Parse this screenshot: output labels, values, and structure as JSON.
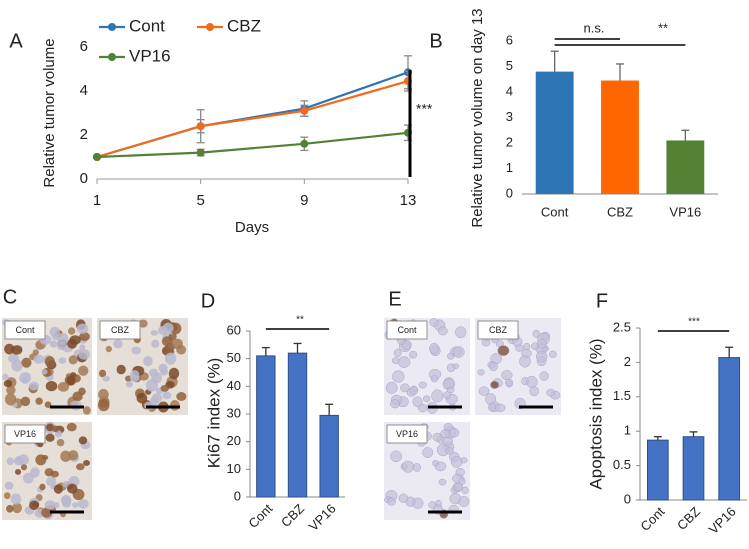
{
  "chart_data": [
    {
      "type": "line",
      "panel": "A",
      "y_label": "Relative tumor volume",
      "x_label": "Days",
      "x": [
        1,
        5,
        9,
        13
      ],
      "xlim": [
        1,
        13
      ],
      "xticks": [
        1,
        5,
        9,
        13
      ],
      "ylim": [
        0,
        6
      ],
      "yticks": [
        0,
        2,
        4,
        6
      ],
      "series": [
        {
          "name": "Cont",
          "color": "#2e75b6",
          "values": [
            1,
            2.4,
            3.2,
            4.85
          ],
          "errors": [
            0,
            0.75,
            0.35,
            0.75
          ]
        },
        {
          "name": "CBZ",
          "color": "#f26a1b",
          "values": [
            1,
            2.4,
            3.1,
            4.45
          ],
          "errors": [
            0,
            0.3,
            0.25,
            0.45
          ]
        },
        {
          "name": "VP16",
          "color": "#548235",
          "values": [
            1,
            1.2,
            1.6,
            2.1
          ],
          "errors": [
            0,
            0.15,
            0.3,
            0.35
          ]
        }
      ],
      "annotations": [
        "***"
      ]
    },
    {
      "type": "bar",
      "panel": "B",
      "y_label": "Relative tumor volume on day 13",
      "categories": [
        "Cont",
        "CBZ",
        "VP16"
      ],
      "values": [
        4.8,
        4.45,
        2.1
      ],
      "errors": [
        0.8,
        0.65,
        0.4
      ],
      "colors": [
        "#2e75b6",
        "#ff6600",
        "#548235"
      ],
      "ylim": [
        0,
        6
      ],
      "yticks": [
        0,
        1,
        2,
        3,
        4,
        5,
        6
      ],
      "y_axis_line": false,
      "annotations": [
        "n.s.",
        "**"
      ]
    },
    {
      "type": "bar",
      "panel": "D",
      "y_label": "Ki67 index (%)",
      "categories": [
        "Cont",
        "CBZ",
        "VP16"
      ],
      "values": [
        51,
        52,
        29.5
      ],
      "errors": [
        3,
        3.5,
        4
      ],
      "colors": [
        "#4472c4",
        "#4472c4",
        "#4472c4"
      ],
      "ylim": [
        0,
        60
      ],
      "yticks": [
        0,
        10,
        20,
        30,
        40,
        50,
        60
      ],
      "y_axis_line": true,
      "annotations": [
        "**"
      ]
    },
    {
      "type": "bar",
      "panel": "F",
      "y_label": "Apoptosis index (%)",
      "categories": [
        "Cont",
        "CBZ",
        "VP16"
      ],
      "values": [
        0.87,
        0.92,
        2.07
      ],
      "errors": [
        0.05,
        0.07,
        0.15
      ],
      "colors": [
        "#4472c4",
        "#4472c4",
        "#4472c4"
      ],
      "ylim": [
        0,
        2.5
      ],
      "yticks": [
        0,
        0.5,
        1,
        1.5,
        2,
        2.5
      ],
      "y_axis_line": true,
      "annotations": [
        "***"
      ]
    }
  ],
  "micrographs": [
    {
      "panel": "C",
      "labels": [
        "Cont",
        "CBZ",
        "VP16"
      ]
    },
    {
      "panel": "E",
      "labels": [
        "Cont",
        "CBZ",
        "VP16"
      ]
    }
  ]
}
